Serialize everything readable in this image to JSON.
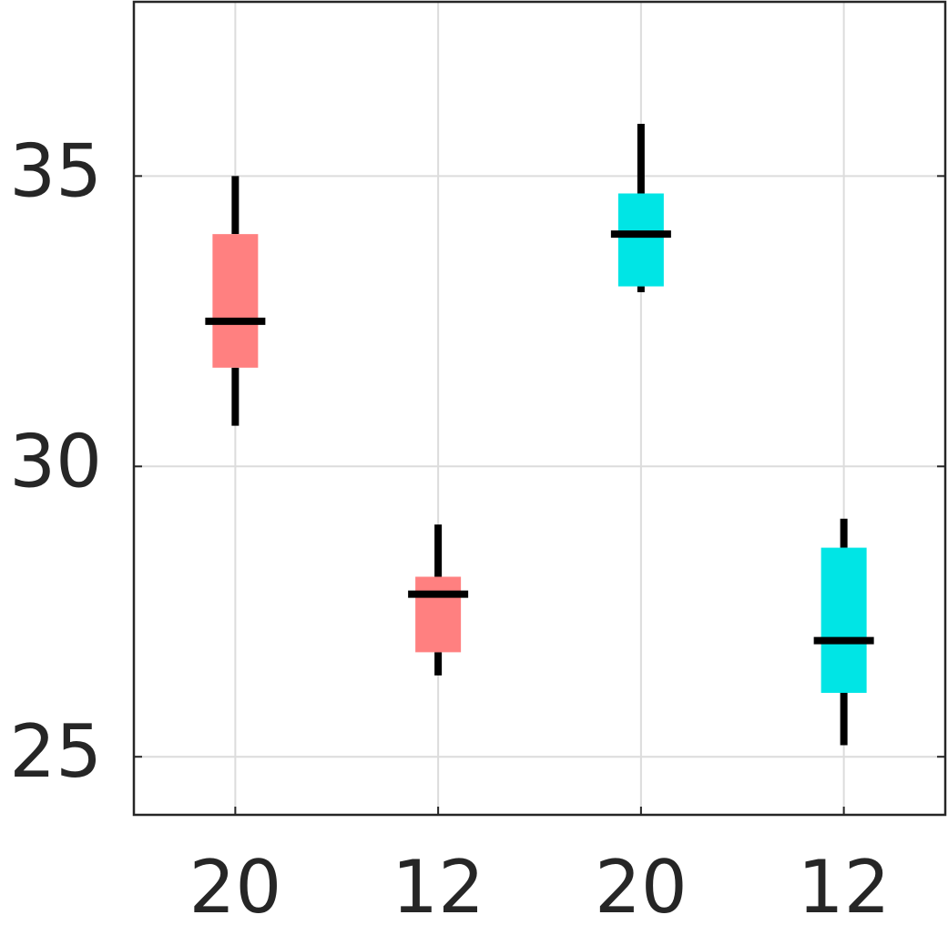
{
  "chart_data": {
    "type": "box",
    "categories": [
      "20",
      "12",
      "20",
      "12"
    ],
    "boxes": [
      {
        "min": 30.7,
        "q1": 31.7,
        "median": 32.5,
        "q3": 34.0,
        "max": 35.0,
        "color": "#ff8080"
      },
      {
        "min": 26.4,
        "q1": 26.8,
        "median": 27.8,
        "q3": 28.1,
        "max": 29.0,
        "color": "#ff8080"
      },
      {
        "min": 33.0,
        "q1": 33.1,
        "median": 34.0,
        "q3": 34.7,
        "max": 35.9,
        "color": "#00e5e5"
      },
      {
        "min": 25.2,
        "q1": 26.1,
        "median": 27.0,
        "q3": 28.6,
        "max": 29.1,
        "color": "#00e5e5"
      }
    ],
    "ylim": [
      24,
      38
    ],
    "yticks": [
      25,
      30,
      35
    ],
    "grid": true
  }
}
